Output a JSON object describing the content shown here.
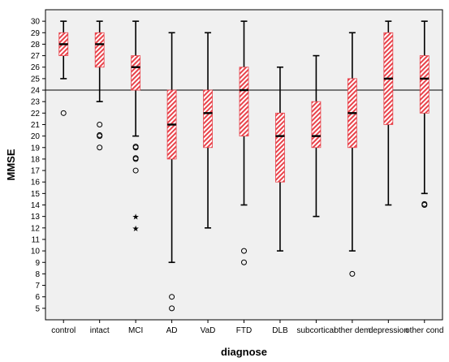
{
  "chart_data": {
    "type": "box",
    "xlabel": "diagnose",
    "ylabel": "MMSE",
    "ylim": [
      4,
      31
    ],
    "yticks": [
      5,
      6,
      7,
      8,
      9,
      10,
      11,
      12,
      13,
      14,
      15,
      16,
      17,
      18,
      19,
      20,
      21,
      22,
      23,
      24,
      25,
      26,
      27,
      28,
      29,
      30
    ],
    "reference_line": 24,
    "grid": false,
    "box_fill": "#e8434b",
    "plot_background": "#f0f0f0",
    "categories": [
      "control",
      "intact",
      "MCI",
      "AD",
      "VaD",
      "FTD",
      "DLB",
      "subcortical",
      "other dem",
      "depression",
      "other cond"
    ],
    "boxes": [
      {
        "category": "control",
        "whisker_low": 25,
        "q1": 27,
        "median": 28,
        "q3": 29,
        "whisker_high": 30,
        "outliers": [
          22
        ],
        "extremes": []
      },
      {
        "category": "intact",
        "whisker_low": 23,
        "q1": 26,
        "median": 28,
        "q3": 29,
        "whisker_high": 30,
        "outliers": [
          21,
          20,
          20,
          19
        ],
        "extremes": []
      },
      {
        "category": "MCI",
        "whisker_low": 20,
        "q1": 24,
        "median": 26,
        "q3": 27,
        "whisker_high": 30,
        "outliers": [
          19,
          19,
          18,
          18,
          17
        ],
        "extremes": [
          13,
          12
        ]
      },
      {
        "category": "AD",
        "whisker_low": 9,
        "q1": 18,
        "median": 21,
        "q3": 24,
        "whisker_high": 29,
        "outliers": [
          6,
          5
        ],
        "extremes": []
      },
      {
        "category": "VaD",
        "whisker_low": 12,
        "q1": 19,
        "median": 22,
        "q3": 24,
        "whisker_high": 29,
        "outliers": [],
        "extremes": []
      },
      {
        "category": "FTD",
        "whisker_low": 14,
        "q1": 20,
        "median": 24,
        "q3": 26,
        "whisker_high": 30,
        "outliers": [
          10,
          9
        ],
        "extremes": []
      },
      {
        "category": "DLB",
        "whisker_low": 10,
        "q1": 16,
        "median": 20,
        "q3": 22,
        "whisker_high": 26,
        "outliers": [],
        "extremes": []
      },
      {
        "category": "subcortical",
        "whisker_low": 13,
        "q1": 19,
        "median": 20,
        "q3": 23,
        "whisker_high": 27,
        "outliers": [],
        "extremes": []
      },
      {
        "category": "other dem",
        "whisker_low": 10,
        "q1": 19,
        "median": 22,
        "q3": 25,
        "whisker_high": 29,
        "outliers": [
          8
        ],
        "extremes": []
      },
      {
        "category": "depression",
        "whisker_low": 14,
        "q1": 21,
        "median": 25,
        "q3": 29,
        "whisker_high": 30,
        "outliers": [],
        "extremes": []
      },
      {
        "category": "other cond",
        "whisker_low": 15,
        "q1": 22,
        "median": 25,
        "q3": 27,
        "whisker_high": 30,
        "outliers": [
          14,
          14
        ],
        "extremes": []
      }
    ]
  }
}
